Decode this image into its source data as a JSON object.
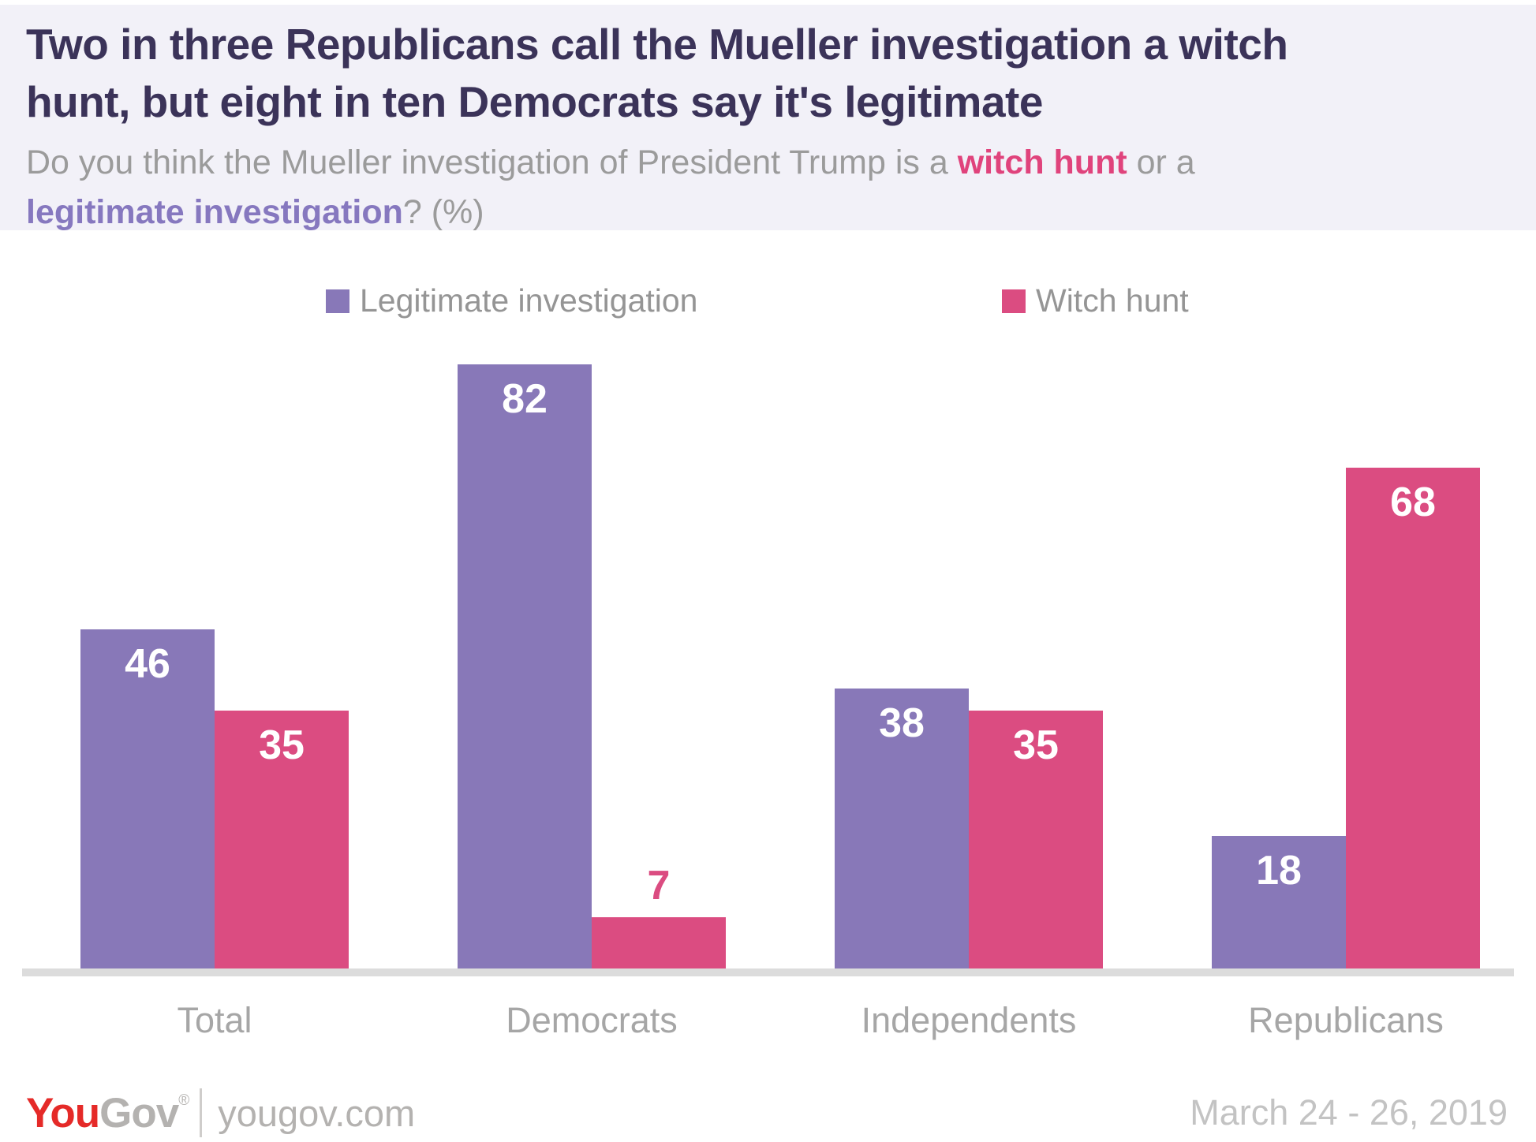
{
  "header": {
    "title_line1": "Two in three Republicans call the Mueller investigation a witch",
    "title_line2": "hunt, but eight in ten Democrats say it's legitimate",
    "subtitle_prefix": "Do you think the Mueller investigation of President Trump is a ",
    "subtitle_witch_hunt": "witch hunt",
    "subtitle_middle": " or a",
    "subtitle_legitimate": "legitimate investigation",
    "subtitle_suffix": "? (%)"
  },
  "chart_data": {
    "type": "bar",
    "title": "Two in three Republicans call the Mueller investigation a witch hunt, but eight in ten Democrats say it's legitimate",
    "question": "Do you think the Mueller investigation of President Trump is a witch hunt or a legitimate investigation? (%)",
    "categories": [
      "Total",
      "Democrats",
      "Independents",
      "Republicans"
    ],
    "series": [
      {
        "name": "Legitimate investigation",
        "color": "#8878b8",
        "values": [
          46,
          82,
          38,
          18
        ]
      },
      {
        "name": "Witch hunt",
        "color": "#db4c81",
        "values": [
          35,
          7,
          35,
          68
        ]
      }
    ],
    "ylim": [
      0,
      82
    ],
    "grid": false,
    "legend_position": "top",
    "value_label_inside_color": "#ffffff"
  },
  "footer": {
    "logo_you": "You",
    "logo_gov": "Gov",
    "logo_reg": "®",
    "site": "yougov.com",
    "date": "March 24 - 26, 2019"
  },
  "colors": {
    "header_bg": "#f2f1f8",
    "title": "#3b3359",
    "subtitle": "#9b9b9b",
    "witch_hunt_text": "#e0437c",
    "legitimate_text": "#8678bf",
    "legend_text": "#959595",
    "axis_line": "#dcdcdc",
    "category_label": "#a6a6a6",
    "date_text": "#c3c3c3",
    "logo_red": "#e52a28",
    "logo_gray": "#b4b2b0"
  }
}
